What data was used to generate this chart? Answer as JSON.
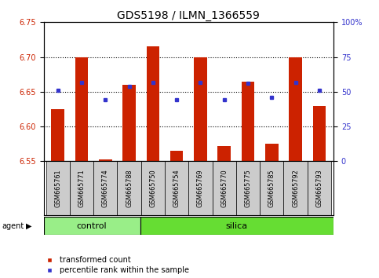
{
  "title": "GDS5198 / ILMN_1366559",
  "samples": [
    "GSM665761",
    "GSM665771",
    "GSM665774",
    "GSM665788",
    "GSM665750",
    "GSM665754",
    "GSM665769",
    "GSM665770",
    "GSM665775",
    "GSM665785",
    "GSM665792",
    "GSM665793"
  ],
  "groups": [
    "control",
    "control",
    "control",
    "control",
    "silica",
    "silica",
    "silica",
    "silica",
    "silica",
    "silica",
    "silica",
    "silica"
  ],
  "red_values": [
    6.625,
    6.7,
    6.553,
    6.66,
    6.715,
    6.565,
    6.7,
    6.572,
    6.665,
    6.575,
    6.7,
    6.63
  ],
  "blue_values": [
    6.652,
    6.663,
    6.638,
    6.658,
    6.663,
    6.638,
    6.663,
    6.638,
    6.662,
    6.642,
    6.663,
    6.652
  ],
  "ylim": [
    6.55,
    6.75
  ],
  "yticks_left": [
    6.55,
    6.6,
    6.65,
    6.7,
    6.75
  ],
  "yticks_right": [
    0,
    25,
    50,
    75,
    100
  ],
  "ytick_labels_right": [
    "0",
    "25",
    "50",
    "75",
    "100%"
  ],
  "bar_color": "#cc2200",
  "dot_color": "#3333cc",
  "control_color": "#99ee88",
  "silica_color": "#66dd33",
  "bar_bottom": 6.55,
  "bar_width": 0.55,
  "tick_fontsize": 7,
  "title_fontsize": 10,
  "group_fontsize": 8,
  "legend_fontsize": 7,
  "n_control": 4,
  "n_silica": 8,
  "legend_red": "transformed count",
  "legend_blue": "percentile rank within the sample"
}
